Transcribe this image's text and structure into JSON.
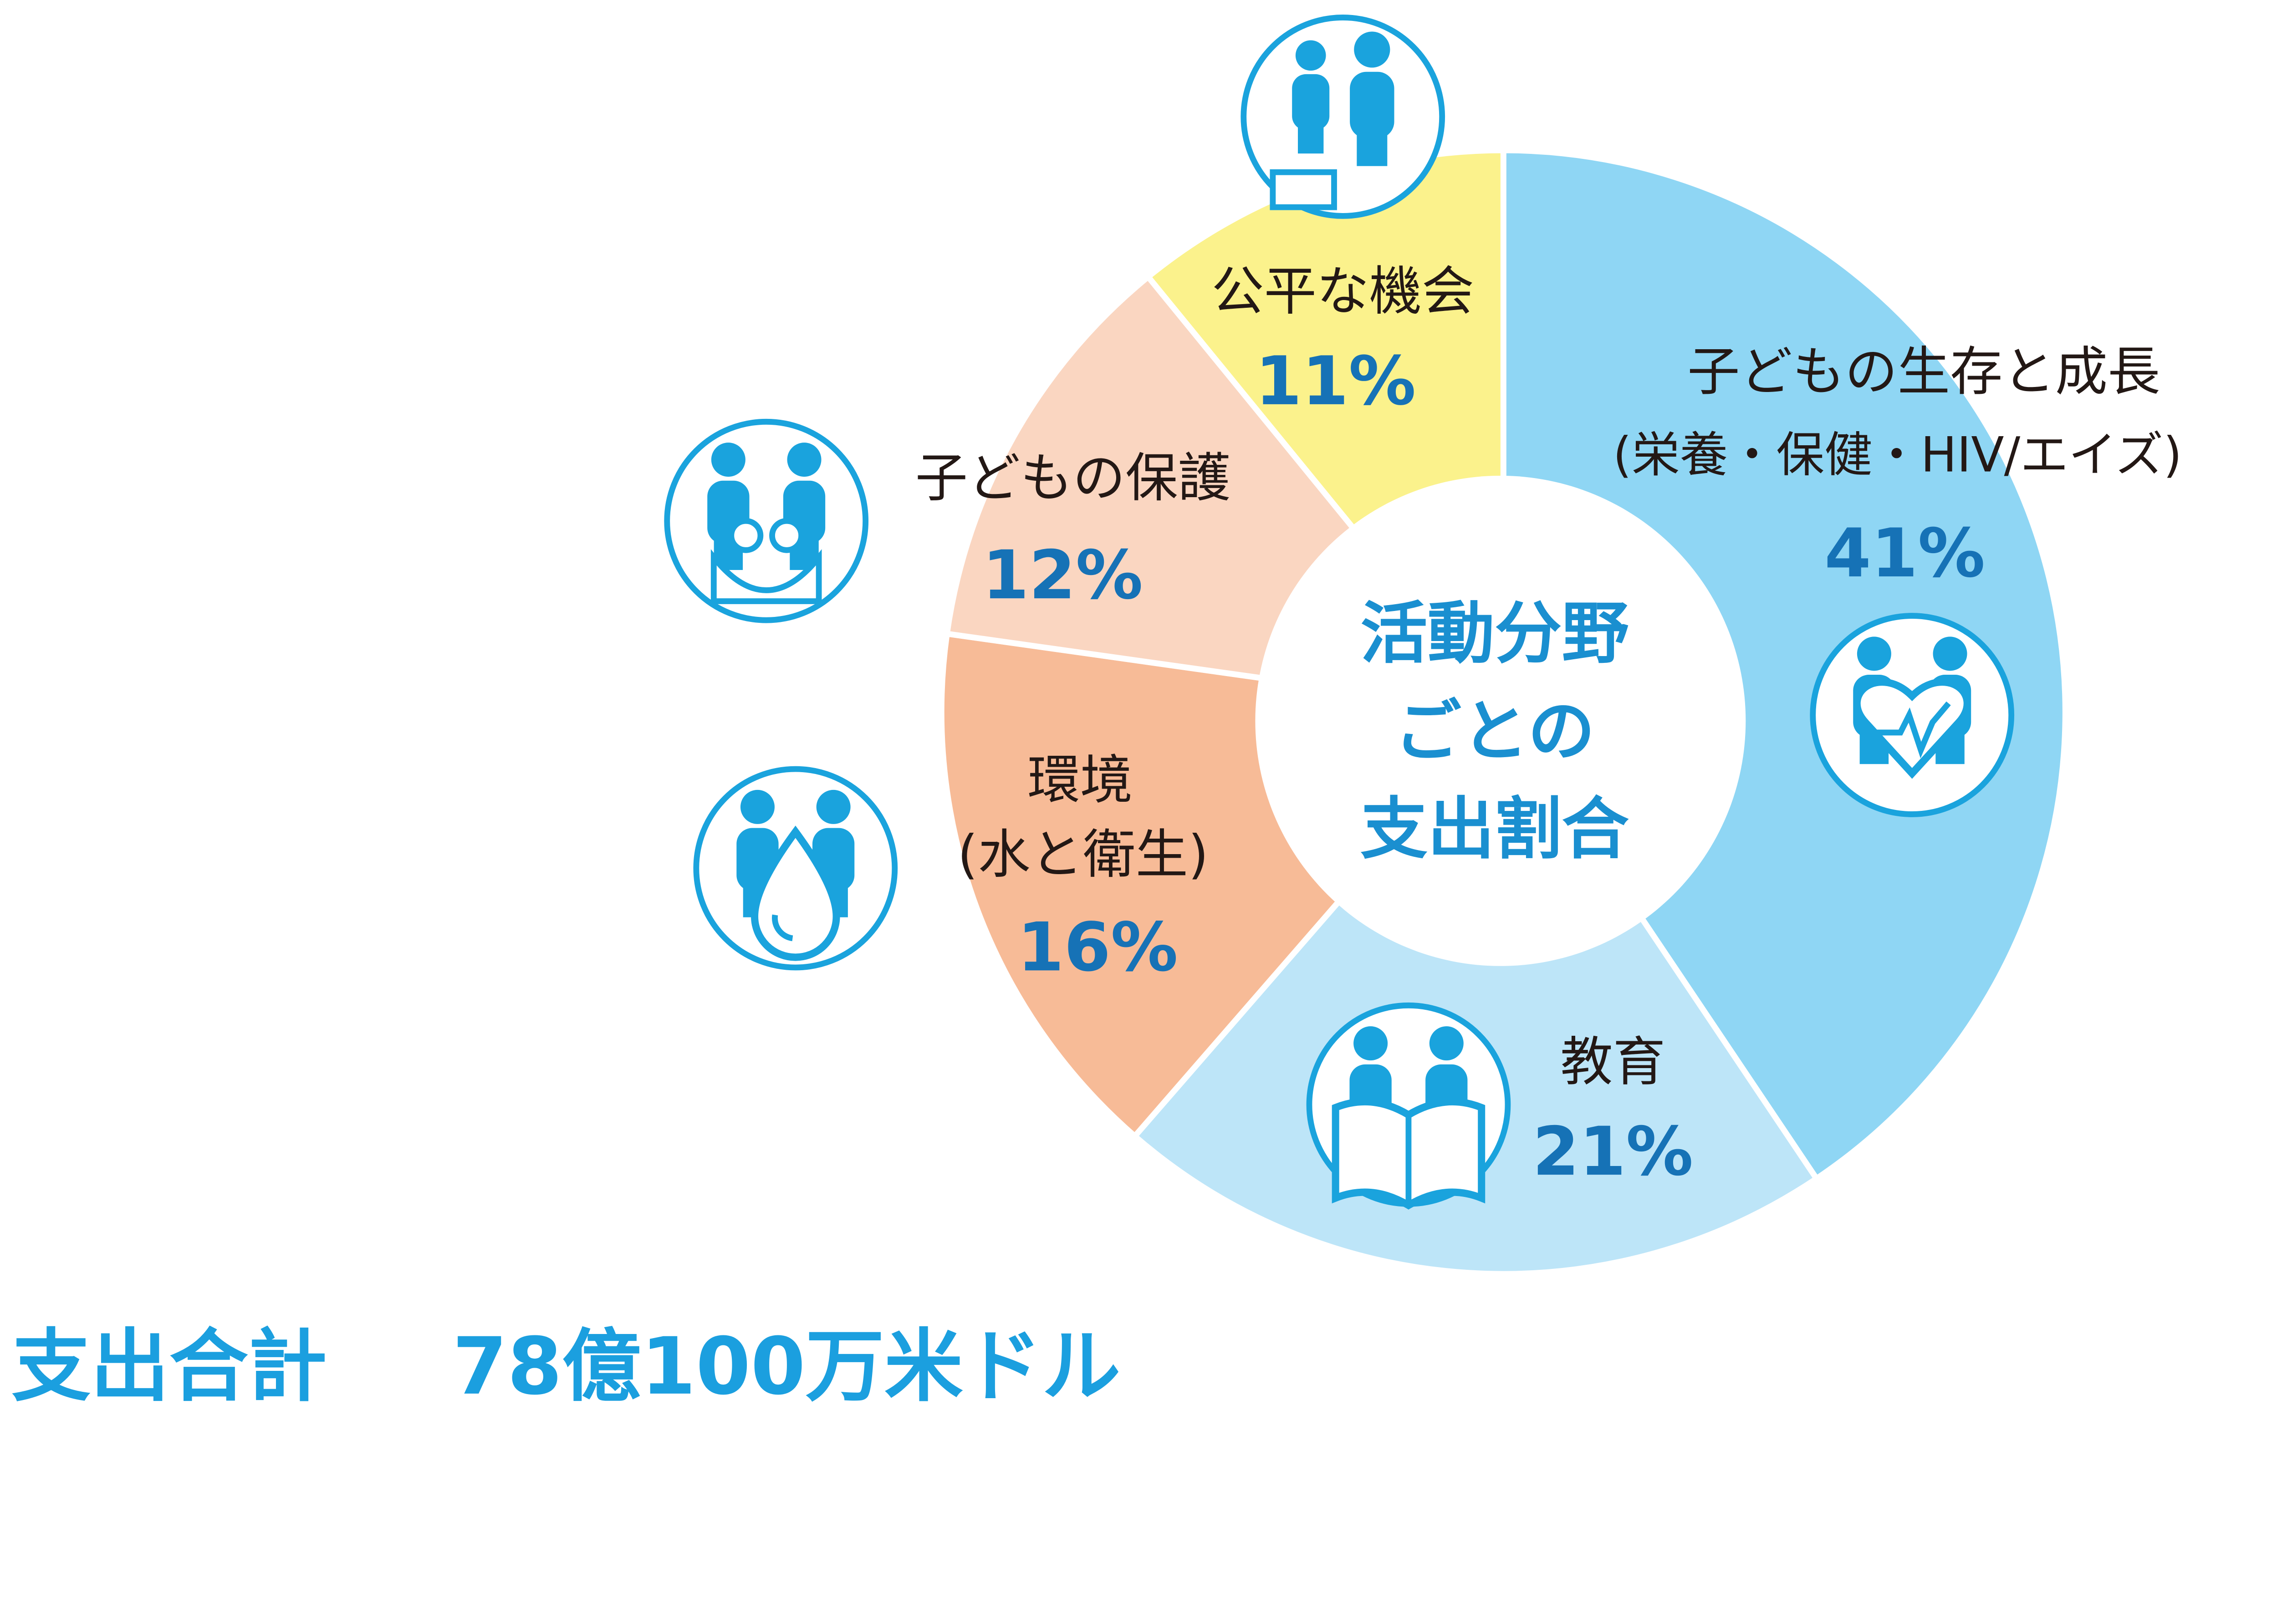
{
  "chart_data": {
    "type": "pie",
    "donut": true,
    "center_label": [
      "活動分野",
      "ごとの",
      "支出割合"
    ],
    "slices": [
      {
        "label": [
          "子どもの生存と成長",
          "(栄養・保健・HIV/エイズ)"
        ],
        "value": 41,
        "value_label": "41%",
        "color": "#8fd6f4",
        "icon": "heart-family-icon"
      },
      {
        "label": [
          "教育"
        ],
        "value": 21,
        "value_label": "21%",
        "color": "#bde5f8",
        "icon": "book-reading-icon"
      },
      {
        "label": [
          "環境",
          "(水と衛生)"
        ],
        "value": 16,
        "value_label": "16%",
        "color": "#f7bb97",
        "icon": "water-drop-icon"
      },
      {
        "label": [
          "子どもの保護"
        ],
        "value": 12,
        "value_label": "12%",
        "color": "#fad6c1",
        "icon": "family-embrace-icon"
      },
      {
        "label": [
          "公平な機会"
        ],
        "value": 11,
        "value_label": "11%",
        "color": "#fbf28c",
        "icon": "equity-step-icon"
      }
    ],
    "start": "top",
    "direction": "clockwise"
  },
  "total": {
    "label": "支出合計",
    "value": "78億100万米ドル"
  },
  "colors": {
    "icon": "#1aa3dd",
    "percent": "#1672b6",
    "center": "#1a8fd0",
    "total": "#1b9fdf"
  }
}
